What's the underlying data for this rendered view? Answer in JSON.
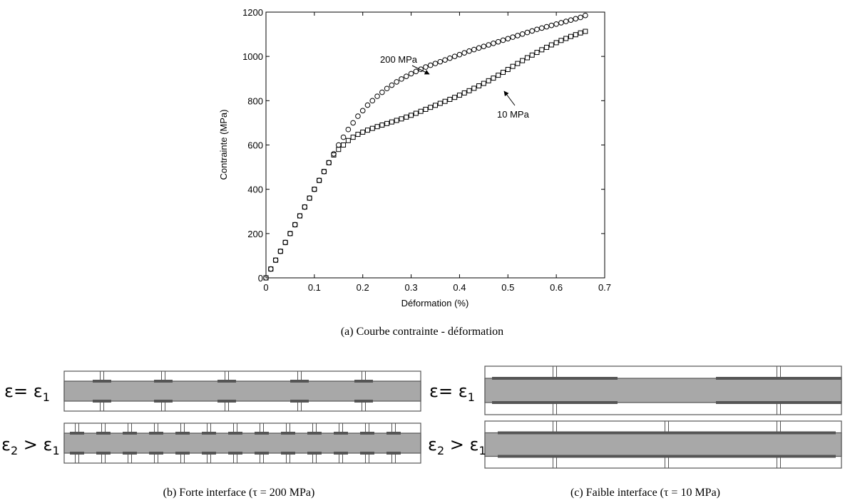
{
  "chart_data": {
    "type": "scatter",
    "xlabel": "Déformation (%)",
    "ylabel": "Contrainte (MPa)",
    "xlim": [
      0,
      0.7
    ],
    "xticks": [
      0,
      0.1,
      0.2,
      0.3,
      0.4,
      0.5,
      0.6,
      0.7
    ],
    "ylim": [
      0,
      1200
    ],
    "yticks": [
      0,
      200,
      400,
      600,
      800,
      1000,
      1200
    ],
    "x": [
      0,
      0.01,
      0.02,
      0.03,
      0.04,
      0.05,
      0.06,
      0.07,
      0.08,
      0.09,
      0.1,
      0.11,
      0.12,
      0.13,
      0.14,
      0.15,
      0.16,
      0.17,
      0.18,
      0.19,
      0.2,
      0.21,
      0.22,
      0.23,
      0.24,
      0.25,
      0.26,
      0.27,
      0.28,
      0.29,
      0.3,
      0.31,
      0.32,
      0.33,
      0.34,
      0.35,
      0.36,
      0.37,
      0.38,
      0.39,
      0.4,
      0.41,
      0.42,
      0.43,
      0.44,
      0.45,
      0.46,
      0.47,
      0.48,
      0.49,
      0.5,
      0.51,
      0.52,
      0.53,
      0.54,
      0.55,
      0.56,
      0.57,
      0.58,
      0.59,
      0.6,
      0.61,
      0.62,
      0.63,
      0.64,
      0.65,
      0.66
    ],
    "series": [
      {
        "name": "200 MPa",
        "color": "#000000",
        "marker": "circle",
        "values": [
          0,
          40,
          80,
          120,
          160,
          200,
          240,
          280,
          320,
          360,
          400,
          440,
          480,
          520,
          560,
          600,
          635,
          670,
          700,
          730,
          755,
          780,
          800,
          820,
          838,
          855,
          870,
          885,
          898,
          910,
          922,
          932,
          942,
          952,
          960,
          968,
          976,
          984,
          992,
          1000,
          1008,
          1016,
          1024,
          1031,
          1038,
          1045,
          1052,
          1059,
          1066,
          1073,
          1080,
          1087,
          1094,
          1101,
          1108,
          1115,
          1122,
          1128,
          1134,
          1140,
          1146,
          1152,
          1158,
          1164,
          1170,
          1176,
          1185
        ]
      },
      {
        "name": "10 MPa",
        "color": "#000000",
        "marker": "square",
        "values": [
          0,
          40,
          80,
          120,
          160,
          200,
          240,
          280,
          320,
          360,
          400,
          440,
          480,
          520,
          555,
          580,
          600,
          620,
          635,
          648,
          658,
          667,
          675,
          683,
          690,
          697,
          704,
          711,
          718,
          726,
          734,
          743,
          752,
          761,
          770,
          779,
          788,
          797,
          806,
          815,
          825,
          835,
          845,
          856,
          867,
          878,
          890,
          902,
          915,
          928,
          941,
          955,
          968,
          981,
          994,
          1006,
          1018,
          1030,
          1041,
          1052,
          1062,
          1072,
          1081,
          1090,
          1098,
          1106,
          1113
        ]
      }
    ]
  },
  "caption_a": "(a)  Courbe contrainte - déformation",
  "panel_b": {
    "caption": "(b)  Forte interface (τ = 200 MPa)",
    "rows": [
      {
        "label_parts": [
          "ε= ε",
          "1"
        ]
      },
      {
        "label_parts": [
          "ε",
          "2",
          " > ε",
          "1"
        ]
      }
    ]
  },
  "panel_c": {
    "caption": "(c)  Faible interface (τ = 10 MPa)",
    "rows": [
      {
        "label_parts": [
          "ε= ε",
          "1"
        ]
      },
      {
        "label_parts": [
          "ε",
          "2",
          " > ε",
          "1"
        ]
      }
    ]
  }
}
